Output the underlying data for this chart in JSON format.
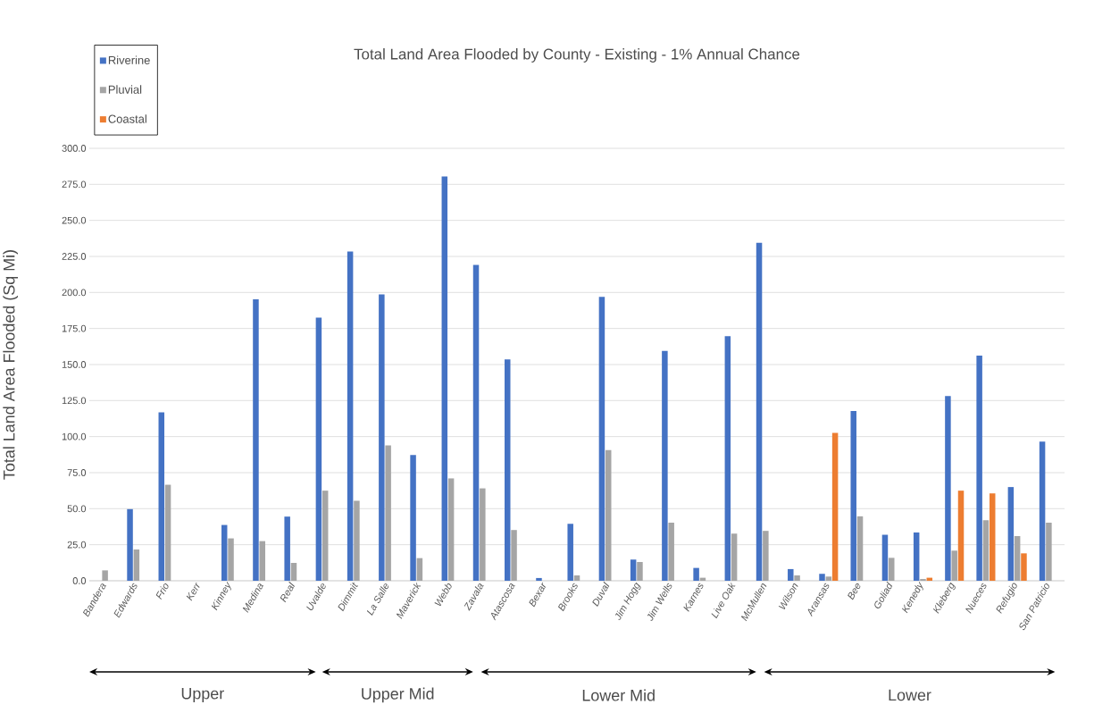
{
  "chart_data": {
    "type": "bar",
    "title": "Total Land Area Flooded by County - Existing - 1% Annual Chance",
    "ylabel": "Total Land Area Flooded (Sq Mi)",
    "categories": [
      "Bandera",
      "Edwards",
      "Frio",
      "Kerr",
      "Kinney",
      "Medina",
      "Real",
      "Uvalde",
      "Dimmit",
      "La Salle",
      "Maverick",
      "Webb",
      "Zavala",
      "Atascosa",
      "Bexar",
      "Brooks",
      "Duval",
      "Jim Hogg",
      "Jim Wells",
      "Karnes",
      "Live Oak",
      "McMullen",
      "Wilson",
      "Aransas",
      "Bee",
      "Goliad",
      "Kenedy",
      "Kleberg",
      "Nueces",
      "Refugio",
      "San Patricio"
    ],
    "series": [
      {
        "name": "Riverine",
        "color": "#4472c4",
        "values": [
          null,
          49.7,
          116.9,
          null,
          38.7,
          195.3,
          44.5,
          182.5,
          228.4,
          198.6,
          87.3,
          280.4,
          219.1,
          153.5,
          1.9,
          39.5,
          197.0,
          14.7,
          159.5,
          8.9,
          169.7,
          234.4,
          8.1,
          4.8,
          117.7,
          31.9,
          33.5,
          128.1,
          156.2,
          65.0,
          96.6
        ]
      },
      {
        "name": "Pluvial",
        "color": "#a5a5a5",
        "values": [
          7.2,
          21.7,
          66.6,
          null,
          29.4,
          27.5,
          12.4,
          62.5,
          55.5,
          93.9,
          15.7,
          71.0,
          64.1,
          35.2,
          null,
          3.7,
          90.6,
          13.0,
          40.3,
          2.1,
          32.7,
          34.6,
          3.7,
          2.9,
          44.7,
          15.9,
          1.2,
          20.9,
          42.0,
          31.0,
          40.3
        ]
      },
      {
        "name": "Coastal",
        "color": "#ed7d31",
        "values": [
          null,
          null,
          null,
          null,
          null,
          null,
          null,
          null,
          null,
          null,
          null,
          null,
          null,
          null,
          null,
          null,
          null,
          null,
          null,
          null,
          null,
          null,
          null,
          102.6,
          null,
          null,
          2.1,
          62.5,
          60.6,
          19.0,
          null
        ]
      }
    ],
    "ylim": [
      0,
      300
    ],
    "yticks": [
      {
        "value": 0,
        "label": "0.0"
      },
      {
        "value": 25,
        "label": "25.0"
      },
      {
        "value": 50,
        "label": "50.0"
      },
      {
        "value": 75,
        "label": "75.0"
      },
      {
        "value": 100,
        "label": "100.0"
      },
      {
        "value": 125,
        "label": "125.0"
      },
      {
        "value": 150,
        "label": "150.0"
      },
      {
        "value": 175,
        "label": "175.0"
      },
      {
        "value": 200,
        "label": "200.0"
      },
      {
        "value": 225,
        "label": "225.0"
      },
      {
        "value": 250,
        "label": "250.0"
      },
      {
        "value": 275,
        "label": "275.0"
      },
      {
        "value": 300,
        "label": "300.0"
      }
    ],
    "grid": "y",
    "legend": "top left",
    "annotations": [
      "Upper",
      "Upper Mid",
      "Lower Mid",
      "Lower"
    ]
  }
}
